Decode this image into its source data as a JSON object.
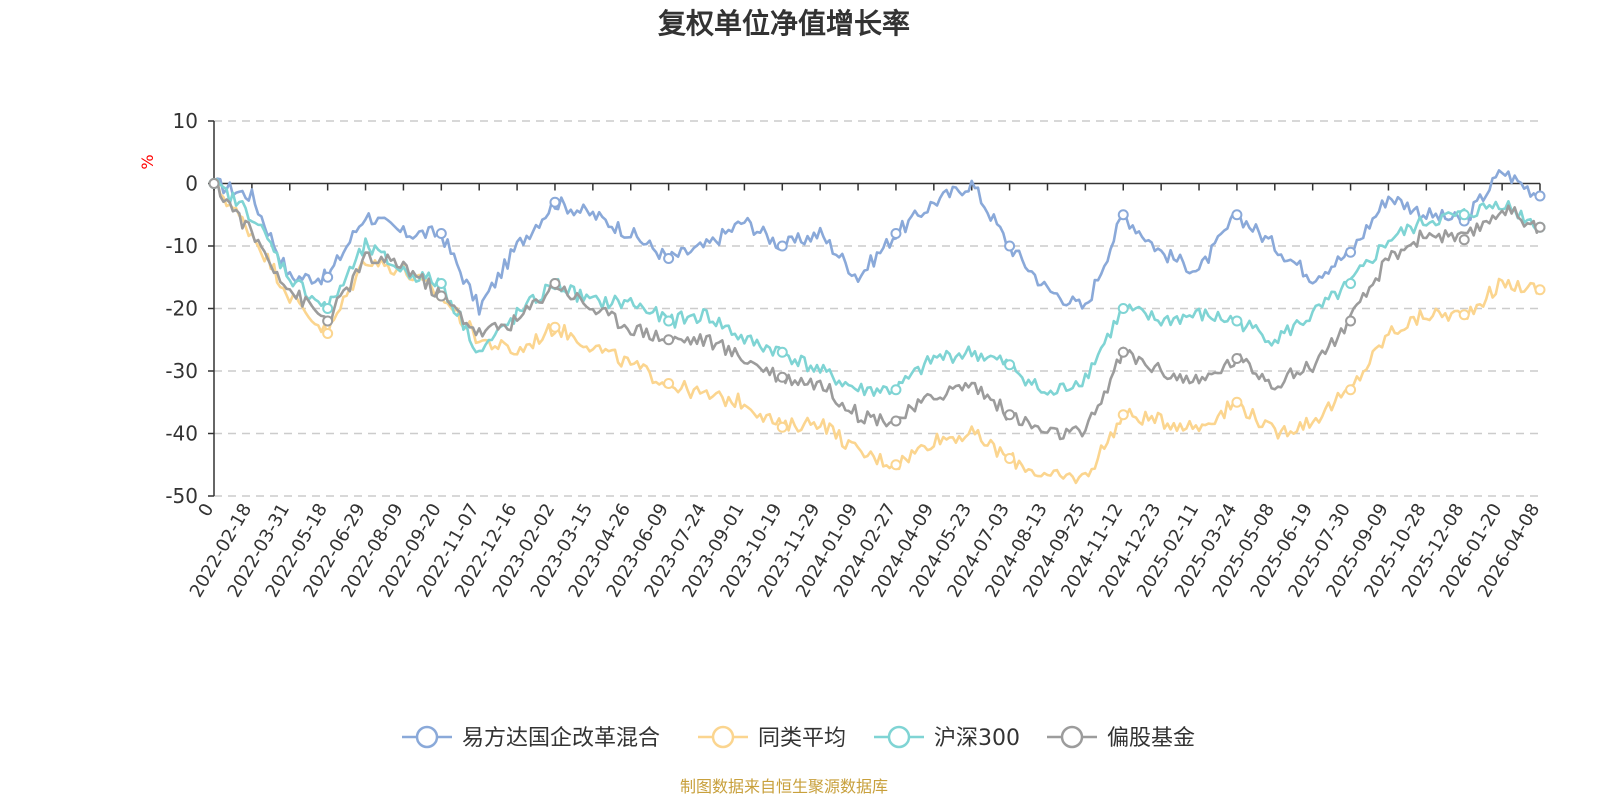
{
  "chart_data": {
    "type": "line",
    "title": "复权单位净值增长率",
    "ylabel": "%",
    "ylim": [
      -50,
      10
    ],
    "yticks": [
      10,
      0,
      -10,
      -20,
      -30,
      -40,
      -50
    ],
    "grid": true,
    "legend_position": "bottom-center",
    "source_note": "制图数据来自恒生聚源数据库",
    "x_labels": [
      "0",
      "2022-02-18",
      "2022-03-31",
      "2022-05-18",
      "2022-06-29",
      "2022-08-09",
      "2022-09-20",
      "2022-11-07",
      "2022-12-16",
      "2023-02-02",
      "2023-03-15",
      "2023-04-26",
      "2023-06-09",
      "2023-07-24",
      "2023-09-01",
      "2023-10-19",
      "2023-11-29",
      "2024-01-09",
      "2024-02-27",
      "2024-04-09",
      "2024-05-23",
      "2024-07-03",
      "2024-08-13",
      "2024-09-25",
      "2024-11-12",
      "2024-12-23",
      "2025-02-11",
      "2025-03-24",
      "2025-05-08",
      "2025-06-19",
      "2025-07-30",
      "2025-09-09",
      "2025-10-28",
      "2025-12-08",
      "2026-01-20",
      "2026-04-08"
    ],
    "series": [
      {
        "name": "易方达国企改革混合",
        "color": "#8aa9d9",
        "values": [
          0,
          -2,
          -15,
          -15,
          -5,
          -8,
          -8,
          -20,
          -10,
          -3,
          -5,
          -8,
          -12,
          -10,
          -6,
          -10,
          -8,
          -15,
          -8,
          -3,
          0,
          -10,
          -17,
          -20,
          -5,
          -11,
          -14,
          -5,
          -10,
          -15,
          -11,
          -2,
          -5,
          -6,
          2,
          -2
        ]
      },
      {
        "name": "同类平均",
        "color": "#fbd58f",
        "values": [
          0,
          -8,
          -18,
          -24,
          -12,
          -14,
          -18,
          -25,
          -27,
          -23,
          -26,
          -29,
          -32,
          -34,
          -35,
          -39,
          -38,
          -43,
          -45,
          -41,
          -40,
          -44,
          -47,
          -47,
          -37,
          -38,
          -39,
          -35,
          -40,
          -38,
          -33,
          -24,
          -21,
          -21,
          -16,
          -17
        ]
      },
      {
        "name": "沪深300",
        "color": "#7fd4d4",
        "values": [
          0,
          -5,
          -15,
          -20,
          -10,
          -14,
          -16,
          -27,
          -21,
          -16,
          -19,
          -19,
          -22,
          -21,
          -25,
          -27,
          -30,
          -33,
          -33,
          -28,
          -27,
          -29,
          -34,
          -31,
          -20,
          -22,
          -21,
          -22,
          -25,
          -21,
          -16,
          -9,
          -6,
          -5,
          -3,
          -7
        ]
      },
      {
        "name": "偏股基金",
        "color": "#9c9c9c",
        "values": [
          0,
          -8,
          -17,
          -22,
          -12,
          -13,
          -18,
          -24,
          -22,
          -16,
          -20,
          -23,
          -25,
          -25,
          -28,
          -31,
          -32,
          -37,
          -38,
          -34,
          -32,
          -37,
          -40,
          -40,
          -27,
          -30,
          -32,
          -28,
          -32,
          -29,
          -22,
          -12,
          -8,
          -9,
          -4,
          -7
        ]
      }
    ]
  }
}
